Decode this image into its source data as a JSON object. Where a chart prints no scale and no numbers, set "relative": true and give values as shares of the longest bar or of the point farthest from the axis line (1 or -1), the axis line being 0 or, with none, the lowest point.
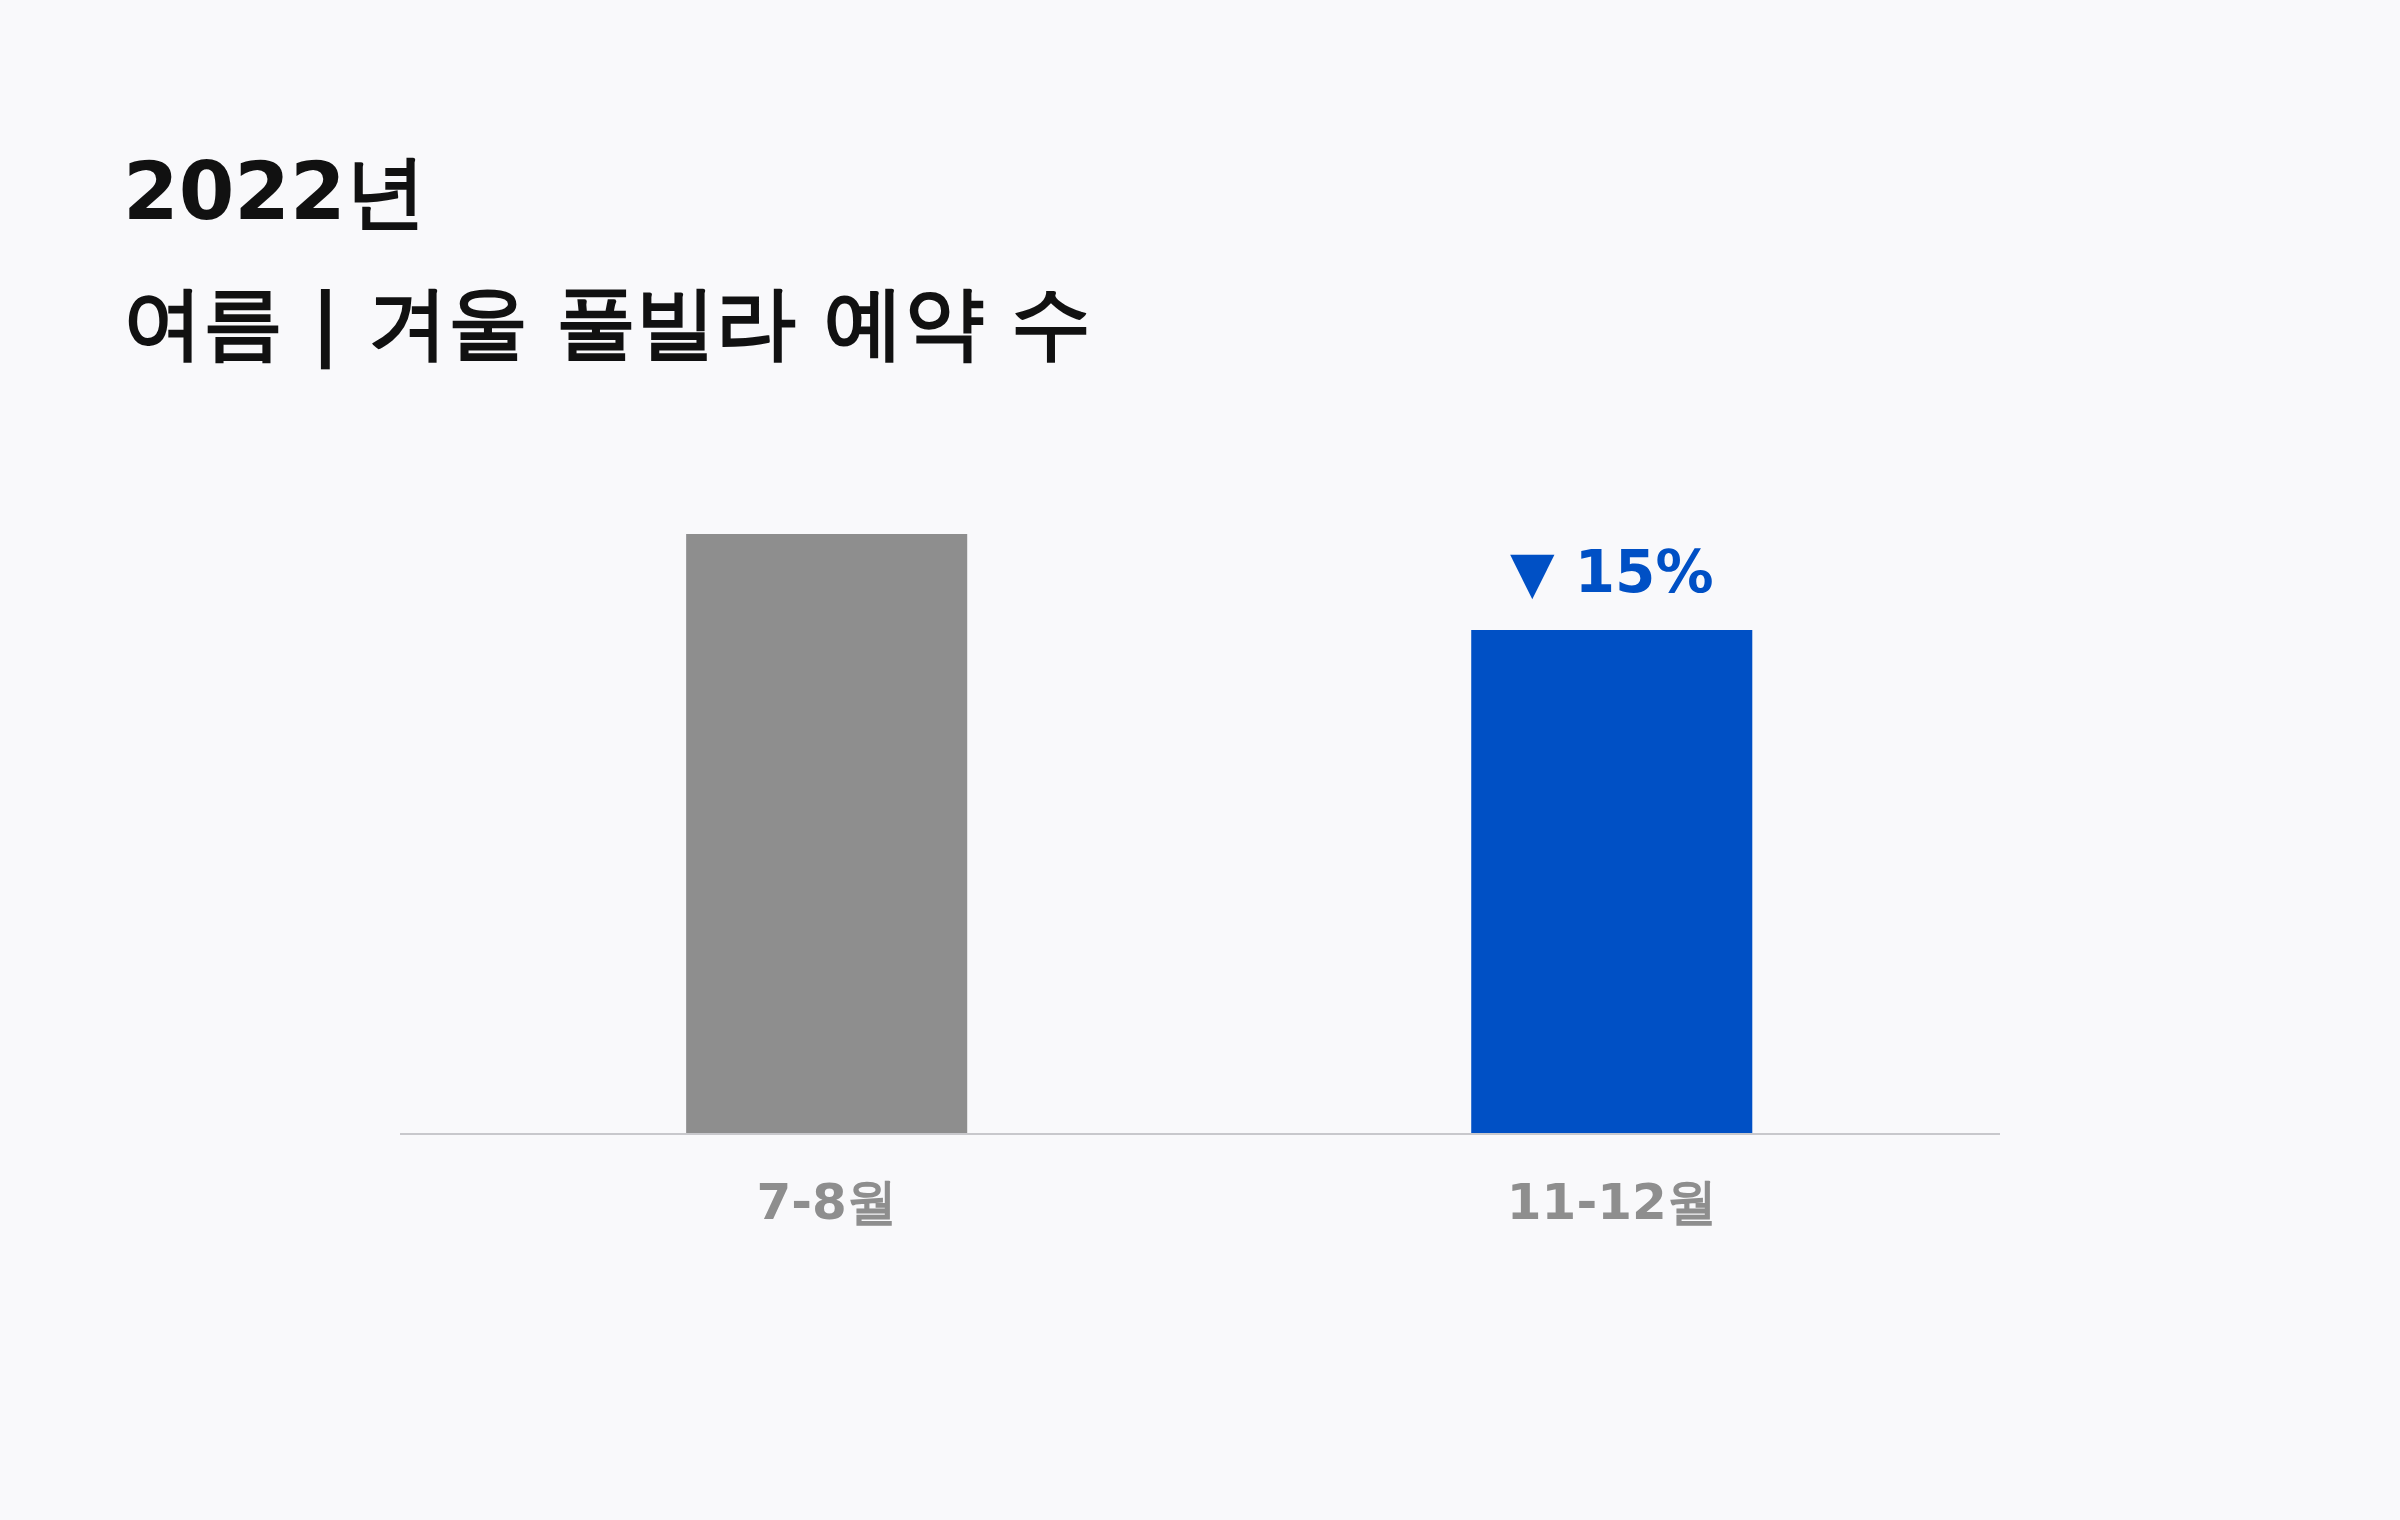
{
  "chart_data": {
    "type": "bar",
    "title": "2022년",
    "subtitle": "여름 | 겨울 풀빌라 예약 수",
    "categories": [
      "7-8월",
      "11-12월"
    ],
    "values": [
      1,
      0.84
    ],
    "colors": [
      "#8e8e8e",
      "#0050c5"
    ],
    "relative": true,
    "annotations": [
      {
        "text": "▼ 15%",
        "x": "11-12월",
        "y": 0.84
      }
    ]
  }
}
